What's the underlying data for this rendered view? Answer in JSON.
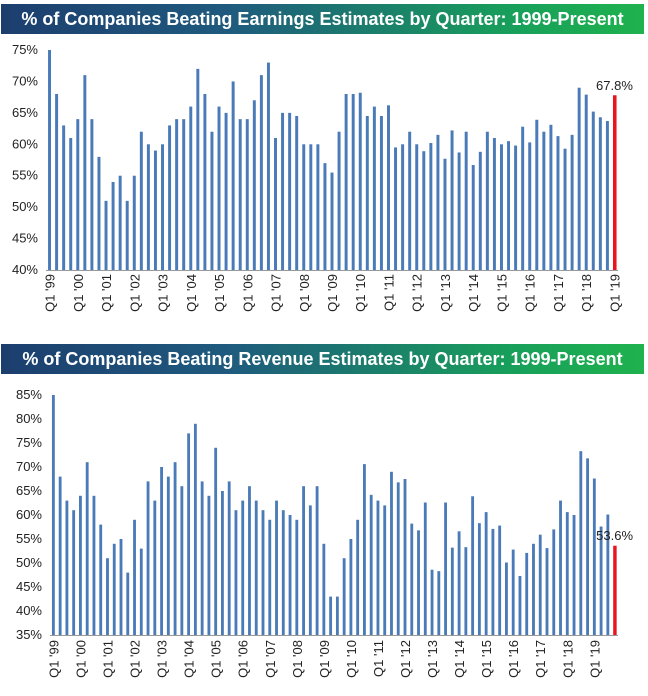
{
  "chart_data": [
    {
      "type": "bar",
      "title": "% of Companies Beating Earnings Estimates by Quarter: 1999-Present",
      "xlabel": "",
      "ylabel": "",
      "ylim": [
        40,
        75
      ],
      "y_ticks": [
        "40%",
        "45%",
        "50%",
        "55%",
        "60%",
        "65%",
        "70%",
        "75%"
      ],
      "y_tick_values": [
        40,
        45,
        50,
        55,
        60,
        65,
        70,
        75
      ],
      "x_tick_labels": [
        "Q1 '99",
        "Q1 '00",
        "Q1 '01",
        "Q1 '02",
        "Q1 '03",
        "Q1 '04",
        "Q1 '05",
        "Q1 '06",
        "Q1 '07",
        "Q1 '08",
        "Q1 '09",
        "Q1 '10",
        "Q1 '11",
        "Q1 '12",
        "Q1 '13",
        "Q1 '14",
        "Q1 '15",
        "Q1 '16",
        "Q1 '17",
        "Q1 '18",
        "Q1 '19"
      ],
      "bar_color": "#4a7ab7",
      "highlight_color": "#e8141e",
      "annotation": "67.8%",
      "grid": false,
      "values": [
        75,
        68,
        63,
        61,
        64,
        71,
        64,
        58,
        51,
        54,
        55,
        51,
        55,
        62,
        60,
        59,
        60,
        63,
        64,
        64,
        66,
        72,
        68,
        62,
        66,
        65,
        70,
        64,
        64,
        67,
        71,
        73,
        61,
        65,
        65,
        64.5,
        60,
        60,
        60,
        57,
        55.5,
        62,
        68,
        68,
        68.2,
        64.5,
        66,
        64.5,
        66.2,
        59.5,
        60,
        62,
        60,
        58.9,
        60.2,
        61.5,
        57.7,
        62.2,
        58.7,
        62,
        56.7,
        58.8,
        62,
        61,
        60,
        60.5,
        59.8,
        62.8,
        60.3,
        63.9,
        62,
        63.1,
        61.3,
        59.3,
        61.5,
        69,
        67.9,
        65.2,
        64.3,
        63.7,
        67.8
      ]
    },
    {
      "type": "bar",
      "title": "% of Companies Beating Revenue Estimates by Quarter: 1999-Present",
      "xlabel": "",
      "ylabel": "",
      "ylim": [
        35,
        85
      ],
      "y_ticks": [
        "35%",
        "40%",
        "45%",
        "50%",
        "55%",
        "60%",
        "65%",
        "70%",
        "75%",
        "80%",
        "85%"
      ],
      "y_tick_values": [
        35,
        40,
        45,
        50,
        55,
        60,
        65,
        70,
        75,
        80,
        85
      ],
      "x_tick_labels": [
        "Q1 '99",
        "Q1 '00",
        "Q1 '01",
        "Q1 '02",
        "Q1 '03",
        "Q1 '04",
        "Q1 '05",
        "Q1 '06",
        "Q1 '07",
        "Q1 '08",
        "Q1 '09",
        "Q1 '10",
        "Q1 '11",
        "Q1 '12",
        "Q1 '13",
        "Q1 '14",
        "Q1 '15",
        "Q1 '16",
        "Q1 '17",
        "Q1 '18",
        "Q1 '19"
      ],
      "bar_color": "#4a7ab7",
      "highlight_color": "#e8141e",
      "annotation": "53.6%",
      "grid": false,
      "values": [
        85,
        68,
        63,
        61,
        64,
        71,
        64,
        58,
        51,
        54,
        55,
        48,
        59,
        53,
        67,
        63,
        70,
        68,
        71,
        66,
        77,
        79,
        67,
        64,
        74,
        65,
        67,
        61,
        63,
        66,
        63,
        61,
        59,
        63,
        61,
        60,
        59,
        66,
        62,
        66,
        54,
        43,
        43,
        51,
        55,
        59,
        70.6,
        64.2,
        63,
        62,
        69,
        66.8,
        67.5,
        58.2,
        56.8,
        62.6,
        48.6,
        48.3,
        62.6,
        53.2,
        56.6,
        53.3,
        63.9,
        58.3,
        60.6,
        57.1,
        57.8,
        50.1,
        52.8,
        47.3,
        52.1,
        54,
        55.9,
        53.1,
        57,
        63,
        60.6,
        60,
        73.3,
        71.8,
        67.6,
        57.6,
        60.1,
        53.6
      ]
    }
  ]
}
